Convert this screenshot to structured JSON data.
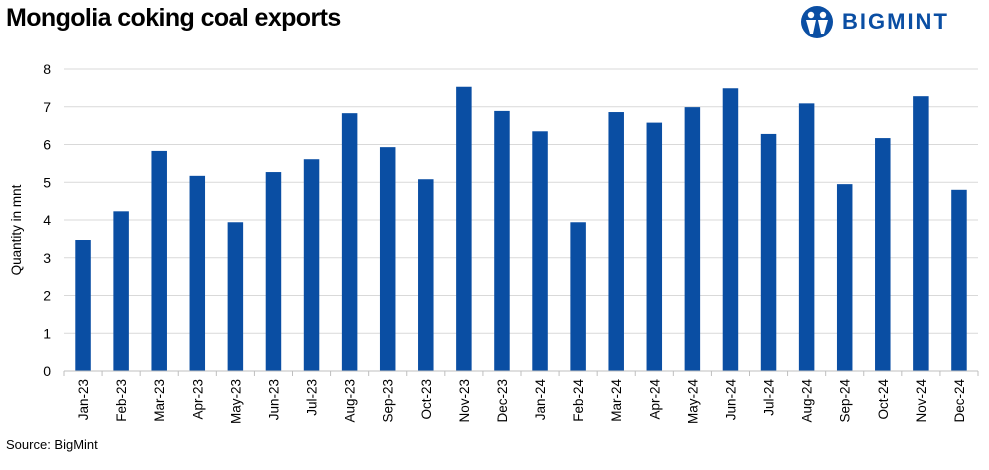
{
  "header": {
    "title": "Mongolia coking coal exports",
    "logo_text": "BIGMINT",
    "logo_icon": "bigmint-logo-icon"
  },
  "footer": {
    "source": "Source: BigMint"
  },
  "colors": {
    "bar": "#0a4ea3",
    "grid": "#d9d9d9",
    "brand": "#0a4ea3"
  },
  "chart_data": {
    "type": "bar",
    "title": "Mongolia coking coal exports",
    "xlabel": "",
    "ylabel": "Quantity in mnt",
    "ylim": [
      0,
      8
    ],
    "yticks": [
      0,
      1,
      2,
      3,
      4,
      5,
      6,
      7,
      8
    ],
    "grid": true,
    "categories": [
      "Jan-23",
      "Feb-23",
      "Mar-23",
      "Apr-23",
      "May-23",
      "Jun-23",
      "Jul-23",
      "Aug-23",
      "Sep-23",
      "Oct-23",
      "Nov-23",
      "Dec-23",
      "Jan-24",
      "Feb-24",
      "Mar-24",
      "Apr-24",
      "May-24",
      "Jun-24",
      "Jul-24",
      "Aug-24",
      "Sep-24",
      "Oct-24",
      "Nov-24",
      "Dec-24"
    ],
    "values": [
      3.47,
      4.23,
      5.83,
      5.17,
      3.94,
      5.27,
      5.61,
      6.83,
      5.93,
      5.08,
      7.53,
      6.89,
      6.35,
      3.94,
      6.86,
      6.58,
      6.99,
      7.49,
      6.28,
      7.09,
      4.95,
      6.17,
      7.28,
      4.8
    ]
  }
}
